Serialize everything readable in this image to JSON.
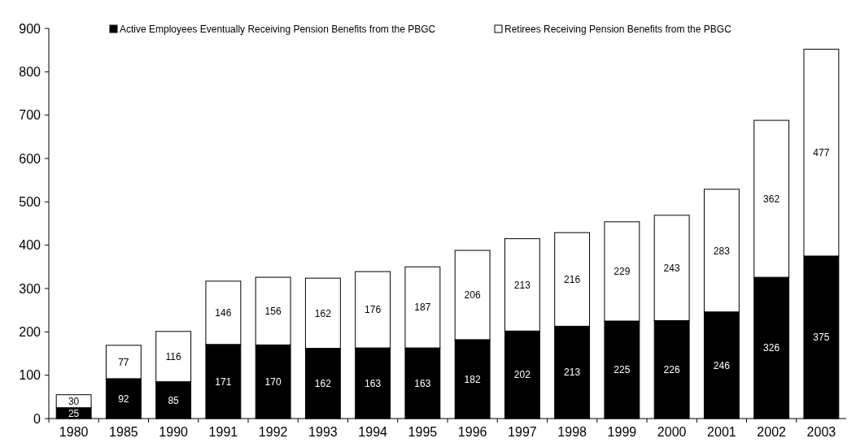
{
  "chart_data": {
    "type": "bar",
    "stacked": true,
    "categories": [
      "1980",
      "1985",
      "1990",
      "1991",
      "1992",
      "1993",
      "1994",
      "1995",
      "1996",
      "1997",
      "1998",
      "1999",
      "2000",
      "2001",
      "2002",
      "2003"
    ],
    "series": [
      {
        "name": "Active Employees Eventually Receiving Pension Benefits from the PBGC",
        "color": "#000000",
        "values": [
          25,
          92,
          85,
          171,
          170,
          162,
          163,
          163,
          182,
          202,
          213,
          225,
          226,
          246,
          326,
          375
        ]
      },
      {
        "name": "Retirees Receiving Pension Benefits from the PBGC",
        "color": "#ffffff",
        "values": [
          30,
          77,
          116,
          146,
          156,
          162,
          176,
          187,
          206,
          213,
          216,
          229,
          243,
          283,
          362,
          477
        ]
      }
    ],
    "ylim": [
      0,
      900
    ],
    "yticks": [
      0,
      100,
      200,
      300,
      400,
      500,
      600,
      700,
      800,
      900
    ],
    "data_labels": true,
    "legend": "top",
    "grid": false
  }
}
